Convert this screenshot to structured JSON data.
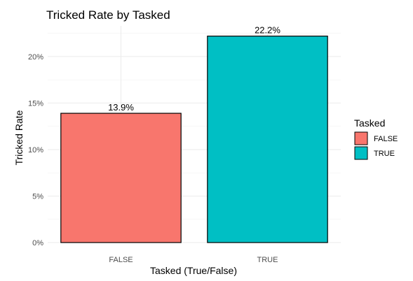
{
  "chart_data": {
    "type": "bar",
    "title": "Tricked Rate by Tasked",
    "xlabel": "Tasked (True/False)",
    "ylabel": "Tricked Rate",
    "categories": [
      "FALSE",
      "TRUE"
    ],
    "values": [
      13.9,
      22.2
    ],
    "value_labels": [
      "13.9%",
      "22.2%"
    ],
    "colors": [
      "#F8766D",
      "#00BFC4"
    ],
    "bar_outline": "#000000",
    "ylim": [
      0,
      23.3
    ],
    "yticks": [
      0,
      5,
      10,
      15,
      20
    ],
    "ytick_labels": [
      "0%",
      "5%",
      "10%",
      "15%",
      "20%"
    ],
    "grid": true,
    "legend": {
      "title": "Tasked",
      "position": "right",
      "entries": [
        "FALSE",
        "TRUE"
      ]
    }
  }
}
